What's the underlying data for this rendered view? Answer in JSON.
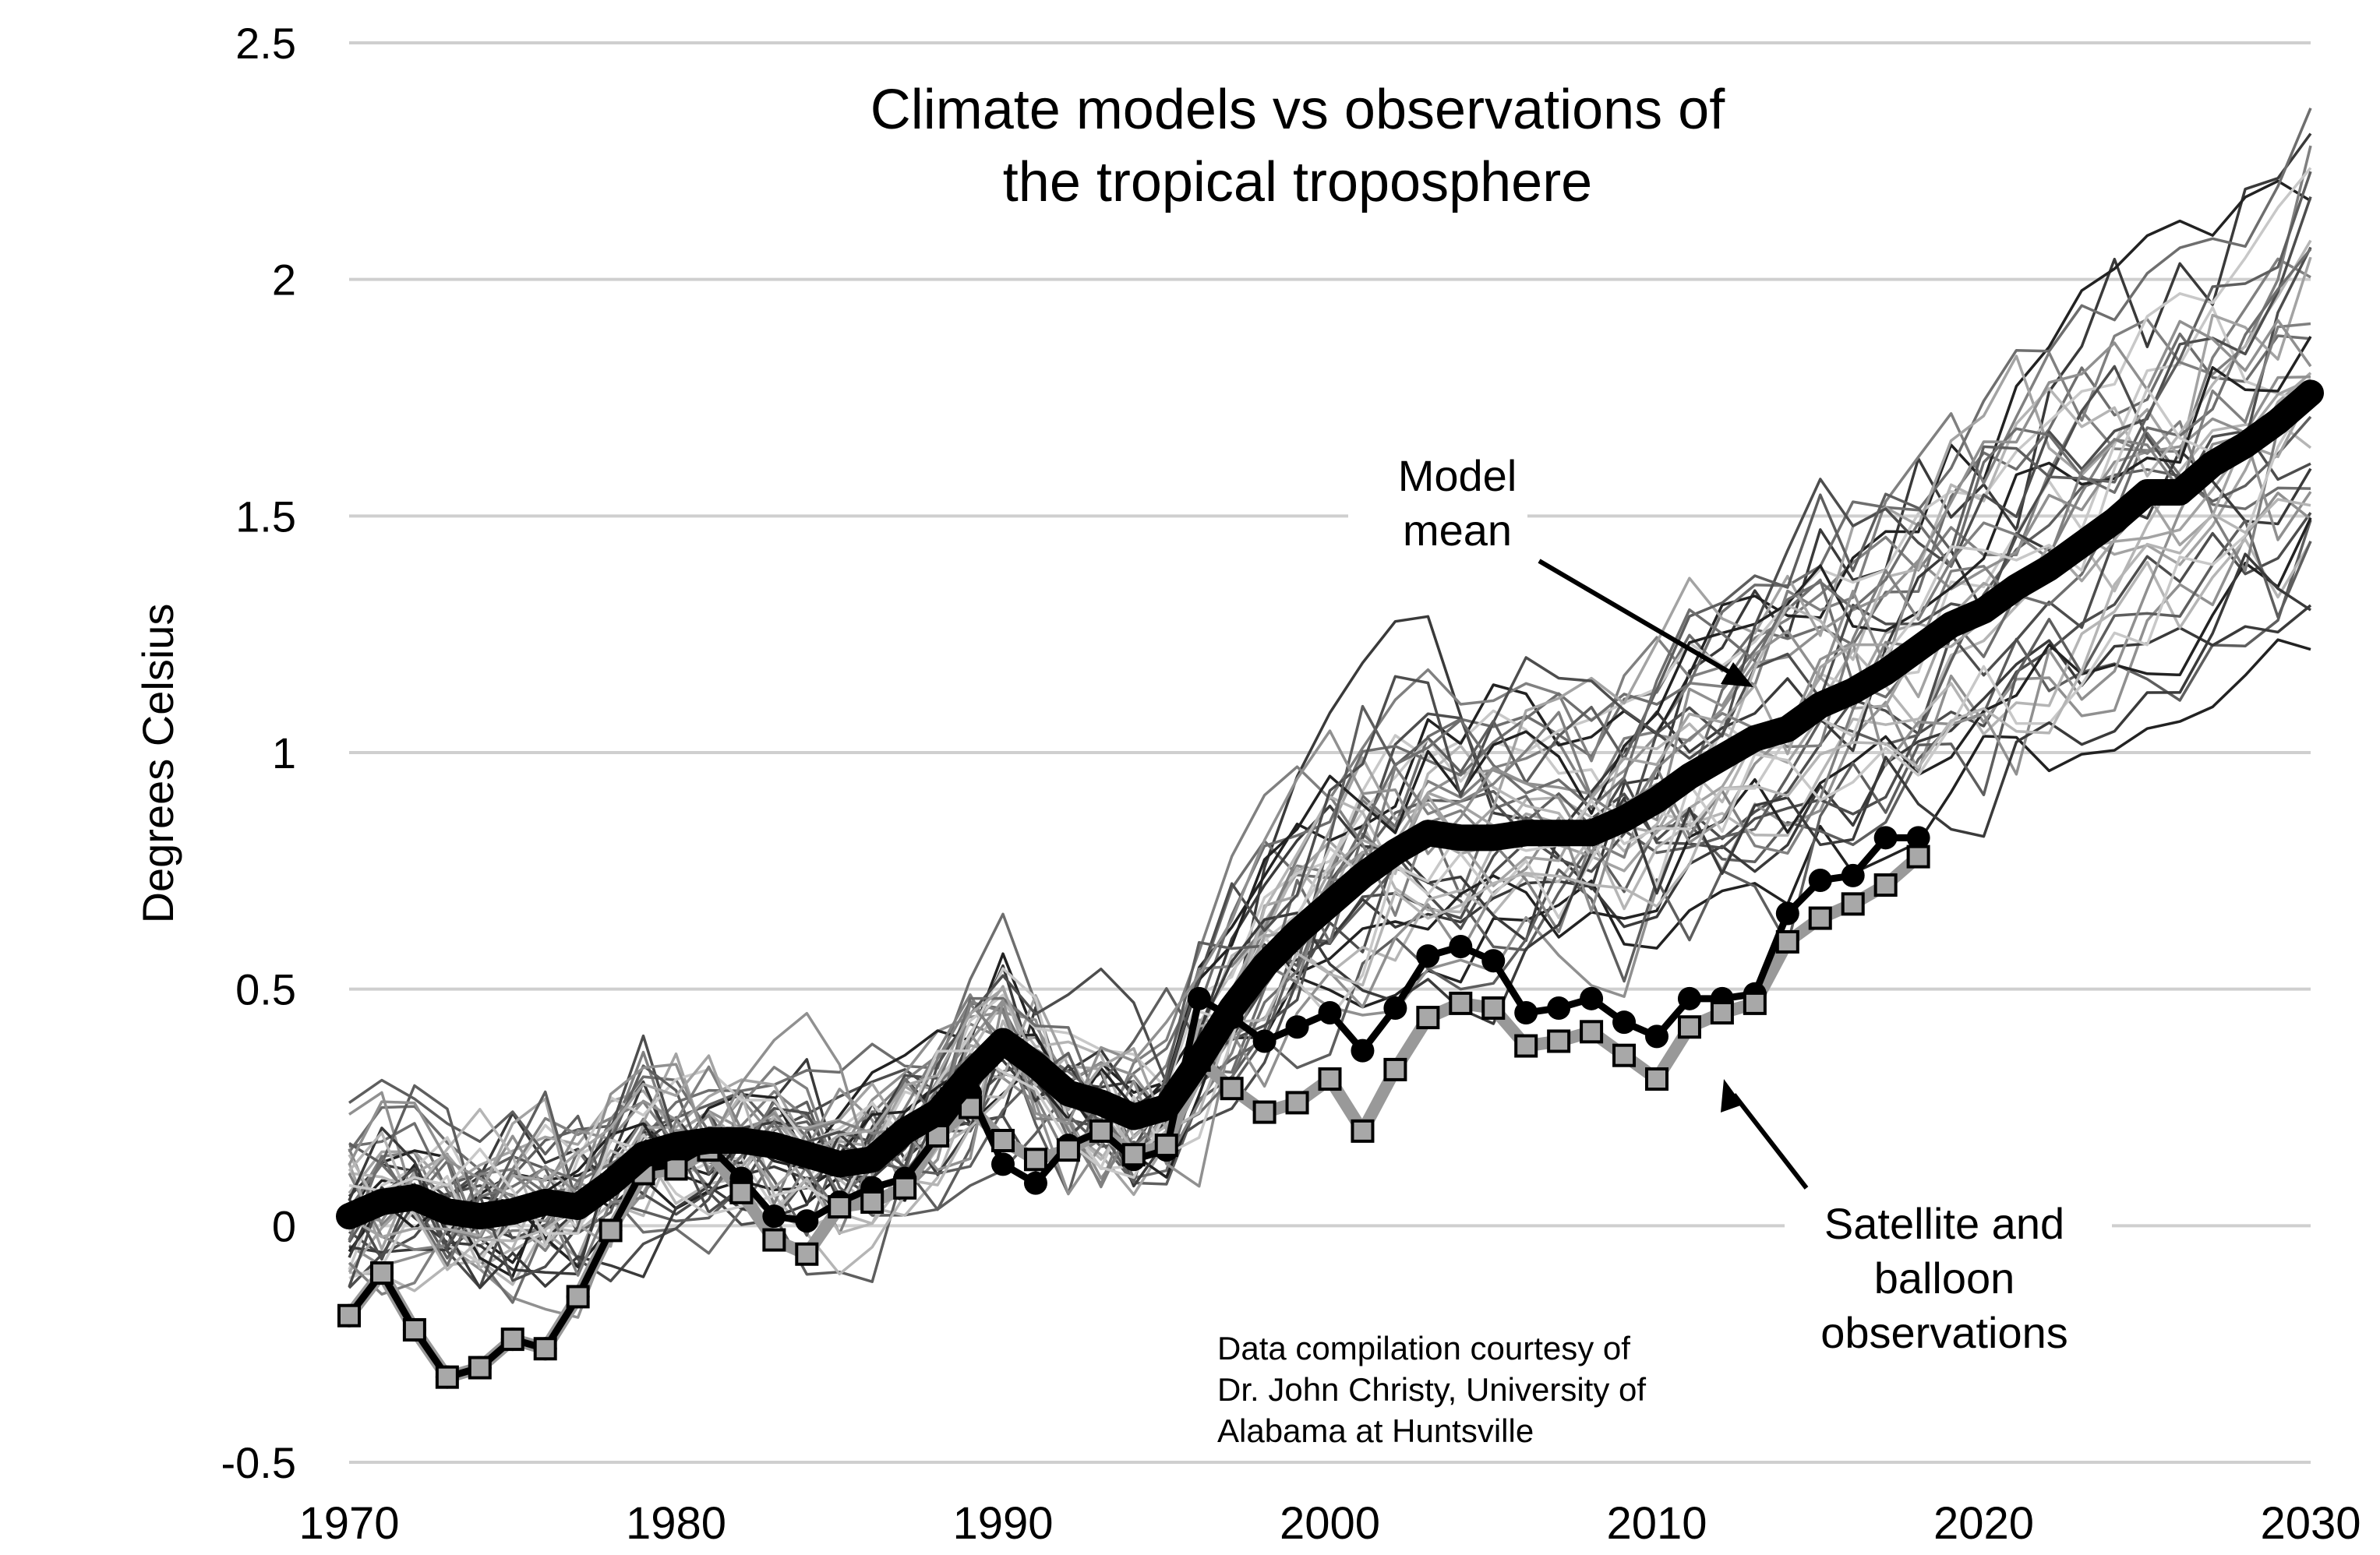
{
  "chart_data": {
    "type": "line",
    "title_lines": [
      "Climate models vs observations of",
      "the tropical troposphere"
    ],
    "ylabel": "Degrees Celsius",
    "xlabel": "",
    "xlim": [
      1970,
      2030
    ],
    "ylim": [
      -0.5,
      2.5
    ],
    "x_ticks": [
      1970,
      1980,
      1990,
      2000,
      2010,
      2020,
      2030
    ],
    "x_tick_labels": [
      "1970",
      "1980",
      "1990",
      "2000",
      "2010",
      "2020",
      "2030"
    ],
    "y_ticks": [
      -0.5,
      0,
      0.5,
      1,
      1.5,
      2,
      2.5
    ],
    "y_tick_labels": [
      "-0.5",
      "0",
      "0.5",
      "1",
      "1.5",
      "2",
      "2.5"
    ],
    "grid": "horizontal",
    "annotations": {
      "model_mean_lines": [
        "Model",
        "mean"
      ],
      "observations_lines": [
        "Satellite and",
        "balloon",
        "observations"
      ],
      "credit_lines": [
        "Data compilation courtesy of",
        "Dr. John Christy, University of",
        "Alabama at Huntsville"
      ]
    },
    "model_mean": {
      "color": "#000000",
      "x": [
        1970,
        1971,
        1972,
        1973,
        1974,
        1975,
        1976,
        1977,
        1978,
        1979,
        1980,
        1981,
        1982,
        1983,
        1984,
        1985,
        1986,
        1987,
        1988,
        1989,
        1990,
        1991,
        1992,
        1993,
        1994,
        1995,
        1996,
        1997,
        1998,
        1999,
        2000,
        2001,
        2002,
        2003,
        2004,
        2005,
        2006,
        2007,
        2008,
        2009,
        2010,
        2011,
        2012,
        2013,
        2014,
        2015,
        2016,
        2017,
        2018,
        2019,
        2020,
        2021,
        2022,
        2023,
        2024,
        2025,
        2026,
        2027,
        2028,
        2029,
        2030
      ],
      "y": [
        0.02,
        0.05,
        0.06,
        0.03,
        0.02,
        0.03,
        0.05,
        0.04,
        0.09,
        0.15,
        0.17,
        0.18,
        0.18,
        0.17,
        0.15,
        0.13,
        0.14,
        0.2,
        0.24,
        0.32,
        0.39,
        0.34,
        0.28,
        0.26,
        0.23,
        0.25,
        0.35,
        0.46,
        0.55,
        0.62,
        0.68,
        0.74,
        0.79,
        0.83,
        0.82,
        0.82,
        0.83,
        0.83,
        0.83,
        0.86,
        0.9,
        0.95,
        0.99,
        1.03,
        1.05,
        1.1,
        1.13,
        1.17,
        1.22,
        1.27,
        1.3,
        1.35,
        1.39,
        1.44,
        1.49,
        1.55,
        1.55,
        1.61,
        1.65,
        1.7,
        1.76
      ]
    },
    "satellites": {
      "color": "#000000",
      "x": [
        1970,
        1971,
        1972,
        1973,
        1974,
        1975,
        1976,
        1977,
        1978,
        1979,
        1980,
        1981,
        1982,
        1983,
        1984,
        1985,
        1986,
        1987,
        1988,
        1989,
        1990,
        1991,
        1992,
        1993,
        1994,
        1995,
        1996,
        1997,
        1998,
        1999,
        2000,
        2001,
        2002,
        2003,
        2004,
        2005,
        2006,
        2007,
        2008,
        2009,
        2010,
        2011,
        2012,
        2013,
        2014,
        2015,
        2016,
        2017,
        2018
      ],
      "y": [
        -0.19,
        -0.1,
        -0.22,
        -0.32,
        -0.3,
        -0.24,
        -0.26,
        -0.15,
        -0.01,
        0.12,
        0.13,
        0.17,
        0.1,
        0.02,
        0.01,
        0.05,
        0.08,
        0.1,
        0.19,
        0.28,
        0.13,
        0.09,
        0.17,
        0.2,
        0.14,
        0.16,
        0.48,
        0.44,
        0.39,
        0.42,
        0.45,
        0.37,
        0.46,
        0.57,
        0.59,
        0.56,
        0.45,
        0.46,
        0.48,
        0.43,
        0.4,
        0.48,
        0.48,
        0.49,
        0.66,
        0.73,
        0.74,
        0.82,
        0.82
      ]
    },
    "balloons": {
      "color": "#999999",
      "x": [
        1970,
        1971,
        1972,
        1973,
        1974,
        1975,
        1976,
        1977,
        1978,
        1979,
        1980,
        1981,
        1982,
        1983,
        1984,
        1985,
        1986,
        1987,
        1988,
        1989,
        1990,
        1991,
        1992,
        1993,
        1994,
        1995,
        1996,
        1997,
        1998,
        1999,
        2000,
        2001,
        2002,
        2003,
        2004,
        2005,
        2006,
        2007,
        2008,
        2009,
        2010,
        2011,
        2012,
        2013,
        2014,
        2015,
        2016,
        2017,
        2018
      ],
      "y": [
        -0.19,
        -0.1,
        -0.22,
        -0.32,
        -0.3,
        -0.24,
        -0.26,
        -0.15,
        -0.01,
        0.11,
        0.12,
        0.16,
        0.07,
        -0.03,
        -0.06,
        0.04,
        0.05,
        0.08,
        0.19,
        0.25,
        0.18,
        0.14,
        0.16,
        0.2,
        0.15,
        0.17,
        0.35,
        0.29,
        0.24,
        0.26,
        0.31,
        0.2,
        0.33,
        0.44,
        0.47,
        0.46,
        0.38,
        0.39,
        0.41,
        0.36,
        0.31,
        0.42,
        0.45,
        0.47,
        0.6,
        0.65,
        0.68,
        0.72,
        0.78
      ]
    },
    "model_runs": {
      "count": 40,
      "colors": [
        "#222222",
        "#3a3a3a",
        "#4d4d4d",
        "#5e5e5e",
        "#6e6e6e",
        "#808080",
        "#909090",
        "#a3a3a3",
        "#b5b5b5",
        "#c8c8c8"
      ],
      "x_start": 1970,
      "x_end": 2030
    }
  }
}
